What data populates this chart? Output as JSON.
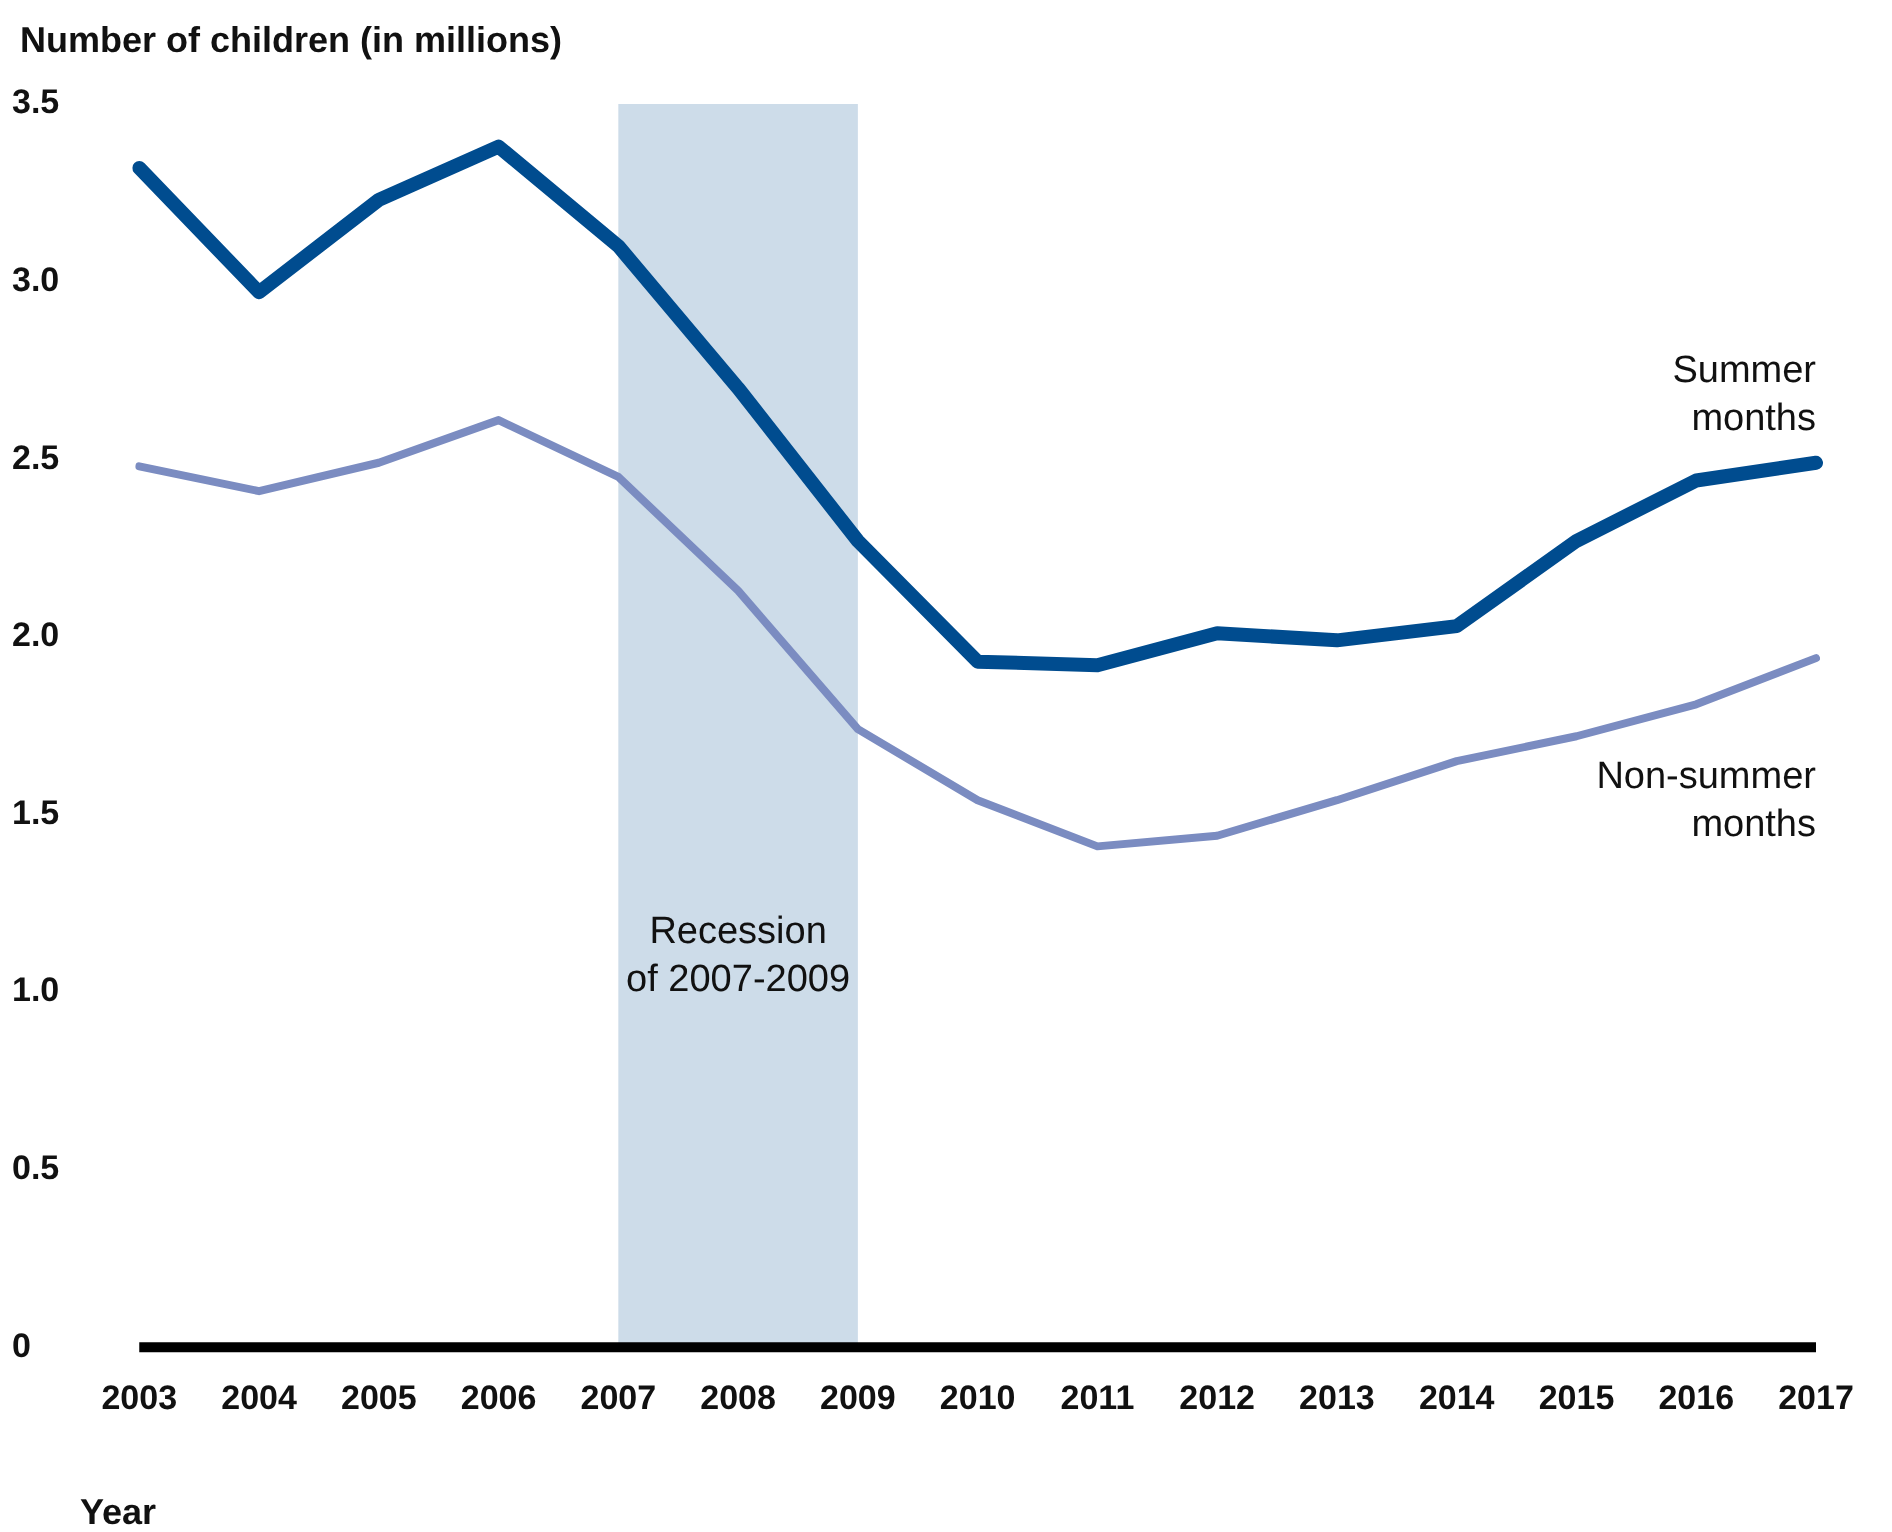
{
  "chart_data": {
    "type": "line",
    "ylabel": "Number of children (in millions)",
    "xlabel": "Year",
    "categories": [
      "2003",
      "2004",
      "2005",
      "2006",
      "2007",
      "2008",
      "2009",
      "2010",
      "2011",
      "2012",
      "2013",
      "2014",
      "2015",
      "2016",
      "2017"
    ],
    "series": [
      {
        "name": "Summer months",
        "color": "#004c8f",
        "values": [
          3.32,
          2.97,
          3.23,
          3.38,
          3.1,
          2.7,
          2.27,
          1.93,
          1.92,
          2.01,
          1.99,
          2.03,
          2.27,
          2.44,
          2.49
        ]
      },
      {
        "name": "Non-summer months",
        "color": "#7b8cc1",
        "values": [
          2.48,
          2.41,
          2.49,
          2.61,
          2.45,
          2.13,
          1.74,
          1.54,
          1.41,
          1.44,
          1.54,
          1.65,
          1.72,
          1.81,
          1.94
        ]
      }
    ],
    "ylim": [
      0,
      3.5
    ],
    "yticks": [
      0,
      0.5,
      {
        "value": 1,
        "label": "1.0"
      },
      1.5,
      {
        "value": 2,
        "label": "2.0"
      },
      2.5,
      {
        "value": 3,
        "label": "3.0"
      },
      3.5
    ],
    "bands": [
      {
        "axis": "x",
        "from": "2007",
        "to": "2009",
        "label": "Recession of 2007-2009",
        "color": "#cddce9"
      }
    ],
    "grid": false,
    "legend": false,
    "marker": "none",
    "line_style": "solid"
  }
}
